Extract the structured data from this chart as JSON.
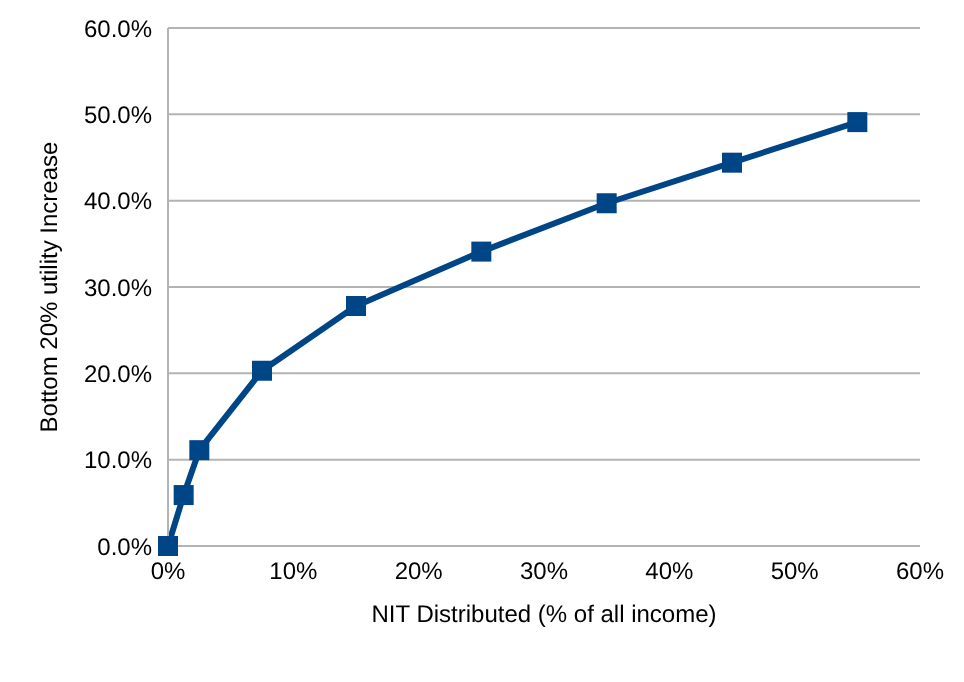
{
  "chart_data": {
    "type": "line",
    "xlabel": "NIT Distributed (% of all income)",
    "ylabel": "Bottom 20% utility Increase",
    "x": [
      0,
      1.25,
      2.5,
      7.5,
      15,
      25,
      35,
      45,
      55
    ],
    "series": [
      {
        "color": "#004586",
        "values": [
          0,
          5.9,
          11.1,
          20.3,
          27.8,
          34.1,
          39.7,
          44.4,
          49.1
        ]
      }
    ],
    "xlim": [
      0,
      60
    ],
    "xticks": [
      {
        "value": 0,
        "label": "0%"
      },
      {
        "value": 10,
        "label": "10%"
      },
      {
        "value": 20,
        "label": "20%"
      },
      {
        "value": 30,
        "label": "30%"
      },
      {
        "value": 40,
        "label": "40%"
      },
      {
        "value": 50,
        "label": "50%"
      },
      {
        "value": 60,
        "label": "60%"
      }
    ],
    "ylim": [
      0,
      60
    ],
    "yticks": [
      {
        "value": 0,
        "label": "0.0%"
      },
      {
        "value": 10,
        "label": "10.0%"
      },
      {
        "value": 20,
        "label": "20.0%"
      },
      {
        "value": 30,
        "label": "30.0%"
      },
      {
        "value": 40,
        "label": "40.0%"
      },
      {
        "value": 50,
        "label": "50.0%"
      },
      {
        "value": 60,
        "label": "60.0%"
      }
    ],
    "grid": "y",
    "marker": "square",
    "line_style": "solid"
  }
}
